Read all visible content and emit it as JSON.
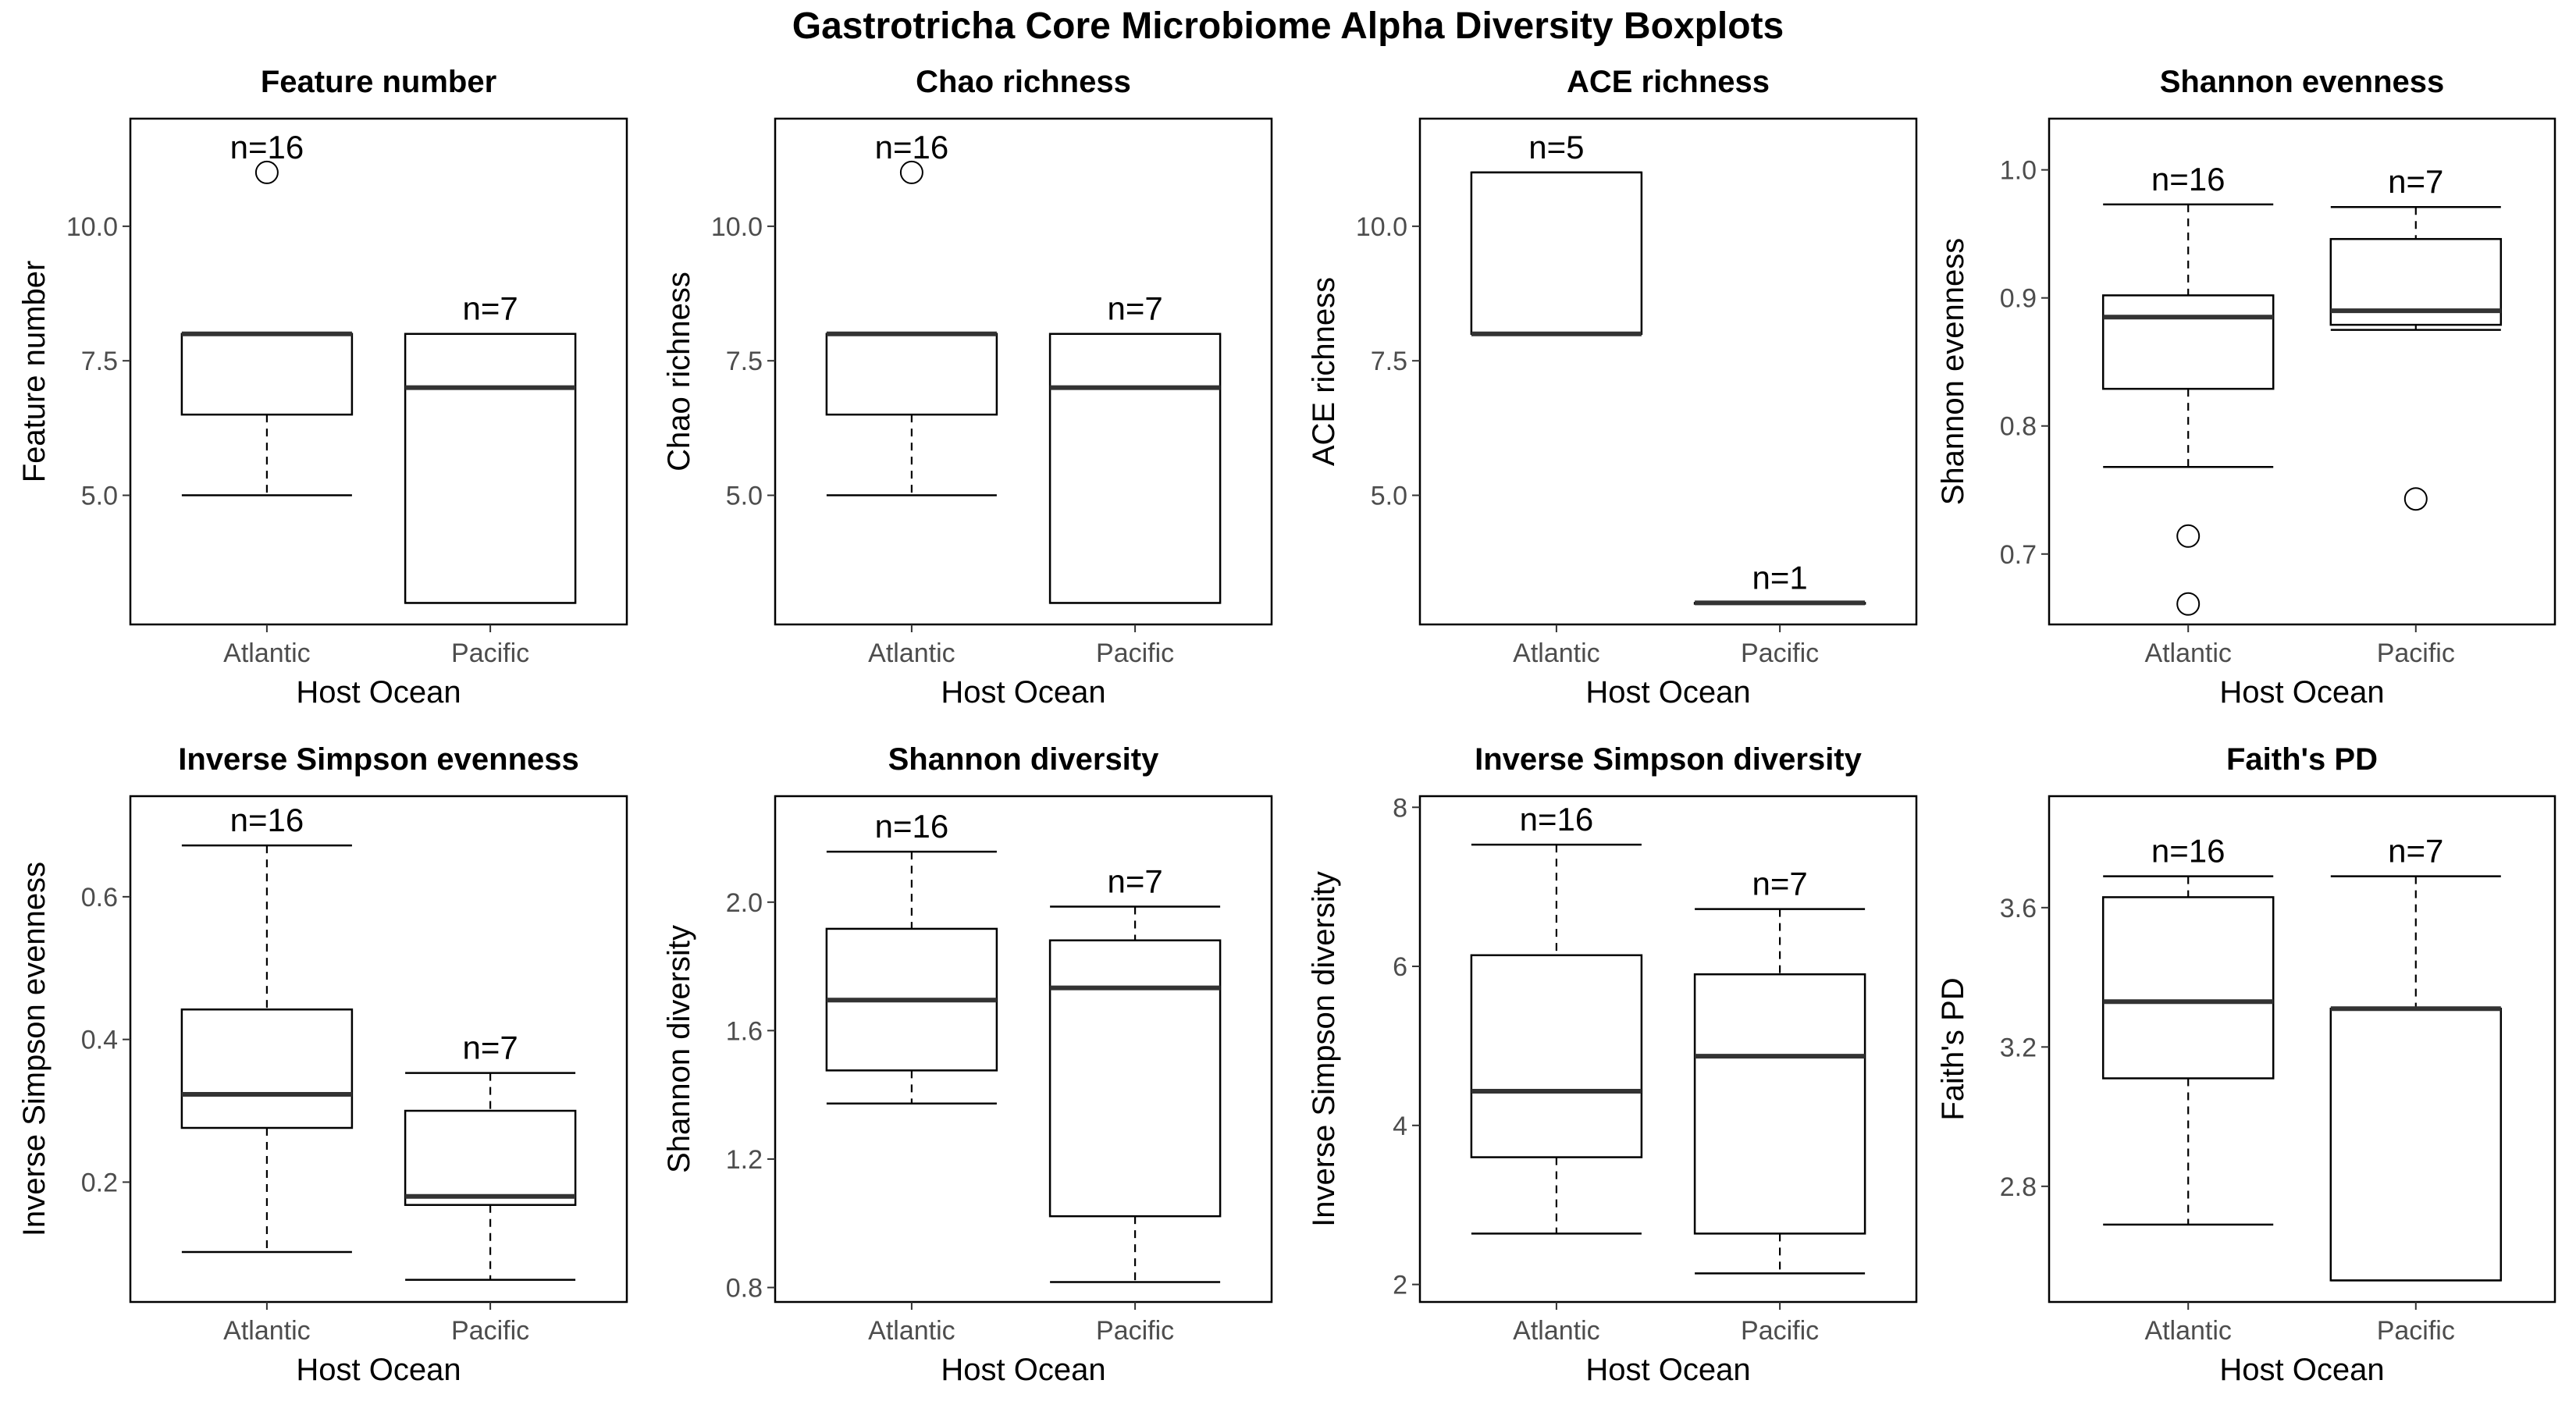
{
  "figure_title": "Gastrotricha Core Microbiome Alpha Diversity Boxplots",
  "chart_data": [
    {
      "type": "boxplot",
      "title": "Feature number",
      "xlabel": "Host Ocean",
      "ylabel": "Feature number",
      "categories": [
        "Atlantic",
        "Pacific"
      ],
      "ylim": [
        2.6,
        12.0
      ],
      "yticks": [
        5.0,
        7.5,
        10.0
      ],
      "ytick_labels": [
        "5.0",
        "7.5",
        "10.0"
      ],
      "boxes": [
        {
          "category": "Atlantic",
          "whisker_low": 5.0,
          "q1": 6.5,
          "median": 8.0,
          "q3": 8.0,
          "whisker_high": 8.0,
          "outliers": [
            11.0
          ],
          "n_label": "n=16"
        },
        {
          "category": "Pacific",
          "whisker_low": 3.0,
          "q1": 3.0,
          "median": 7.0,
          "q3": 8.0,
          "whisker_high": 8.0,
          "outliers": [],
          "n_label": "n=7"
        }
      ]
    },
    {
      "type": "boxplot",
      "title": "Chao richness",
      "xlabel": "Host Ocean",
      "ylabel": "Chao richness",
      "categories": [
        "Atlantic",
        "Pacific"
      ],
      "ylim": [
        2.6,
        12.0
      ],
      "yticks": [
        5.0,
        7.5,
        10.0
      ],
      "ytick_labels": [
        "5.0",
        "7.5",
        "10.0"
      ],
      "boxes": [
        {
          "category": "Atlantic",
          "whisker_low": 5.0,
          "q1": 6.5,
          "median": 8.0,
          "q3": 8.0,
          "whisker_high": 8.0,
          "outliers": [
            11.0
          ],
          "n_label": "n=16"
        },
        {
          "category": "Pacific",
          "whisker_low": 3.0,
          "q1": 3.0,
          "median": 7.0,
          "q3": 8.0,
          "whisker_high": 8.0,
          "outliers": [],
          "n_label": "n=7"
        }
      ]
    },
    {
      "type": "boxplot",
      "title": "ACE richness",
      "xlabel": "Host Ocean",
      "ylabel": "ACE richness",
      "categories": [
        "Atlantic",
        "Pacific"
      ],
      "ylim": [
        2.6,
        12.0
      ],
      "yticks": [
        5.0,
        7.5,
        10.0
      ],
      "ytick_labels": [
        "5.0",
        "7.5",
        "10.0"
      ],
      "boxes": [
        {
          "category": "Atlantic",
          "whisker_low": 8.0,
          "q1": 8.0,
          "median": 8.0,
          "q3": 11.0,
          "whisker_high": 11.0,
          "outliers": [],
          "n_label": "n=5"
        },
        {
          "category": "Pacific",
          "whisker_low": 3.0,
          "q1": 3.0,
          "median": 3.0,
          "q3": 3.0,
          "whisker_high": 3.0,
          "outliers": [],
          "n_label": "n=1"
        }
      ]
    },
    {
      "type": "boxplot",
      "title": "Shannon evenness",
      "xlabel": "Host Ocean",
      "ylabel": "Shannon evenness",
      "categories": [
        "Atlantic",
        "Pacific"
      ],
      "ylim": [
        0.645,
        1.04
      ],
      "yticks": [
        0.7,
        0.8,
        0.9,
        1.0
      ],
      "ytick_labels": [
        "0.7",
        "0.8",
        "0.9",
        "1.0"
      ],
      "boxes": [
        {
          "category": "Atlantic",
          "whisker_low": 0.768,
          "q1": 0.829,
          "median": 0.885,
          "q3": 0.902,
          "whisker_high": 0.973,
          "outliers": [
            0.714,
            0.661
          ],
          "n_label": "n=16"
        },
        {
          "category": "Pacific",
          "whisker_low": 0.875,
          "q1": 0.879,
          "median": 0.89,
          "q3": 0.946,
          "whisker_high": 0.971,
          "outliers": [
            0.743
          ],
          "n_label": "n=7"
        }
      ]
    },
    {
      "type": "boxplot",
      "title": "Inverse Simpson evenness",
      "xlabel": "Host Ocean",
      "ylabel": "Inverse Simpson evenness",
      "categories": [
        "Atlantic",
        "Pacific"
      ],
      "ylim": [
        0.032,
        0.741
      ],
      "yticks": [
        0.2,
        0.4,
        0.6
      ],
      "ytick_labels": [
        "0.2",
        "0.4",
        "0.6"
      ],
      "boxes": [
        {
          "category": "Atlantic",
          "whisker_low": 0.102,
          "q1": 0.276,
          "median": 0.323,
          "q3": 0.442,
          "whisker_high": 0.672,
          "outliers": [],
          "n_label": "n=16"
        },
        {
          "category": "Pacific",
          "whisker_low": 0.063,
          "q1": 0.168,
          "median": 0.18,
          "q3": 0.3,
          "whisker_high": 0.353,
          "outliers": [],
          "n_label": "n=7"
        }
      ]
    },
    {
      "type": "boxplot",
      "title": "Shannon diversity",
      "xlabel": "Host Ocean",
      "ylabel": "Shannon diversity",
      "categories": [
        "Atlantic",
        "Pacific"
      ],
      "ylim": [
        0.755,
        2.33
      ],
      "yticks": [
        0.8,
        1.2,
        1.6,
        2.0
      ],
      "ytick_labels": [
        "0.8",
        "1.2",
        "1.6",
        "2.0"
      ],
      "boxes": [
        {
          "category": "Atlantic",
          "whisker_low": 1.373,
          "q1": 1.476,
          "median": 1.695,
          "q3": 1.917,
          "whisker_high": 2.157,
          "outliers": [],
          "n_label": "n=16"
        },
        {
          "category": "Pacific",
          "whisker_low": 0.817,
          "q1": 1.022,
          "median": 1.733,
          "q3": 1.881,
          "whisker_high": 1.986,
          "outliers": [],
          "n_label": "n=7"
        }
      ]
    },
    {
      "type": "boxplot",
      "title": "Inverse Simpson diversity",
      "xlabel": "Host Ocean",
      "ylabel": "Inverse Simpson diversity",
      "categories": [
        "Atlantic",
        "Pacific"
      ],
      "ylim": [
        1.78,
        8.14
      ],
      "yticks": [
        2,
        4,
        6,
        8
      ],
      "ytick_labels": [
        "2",
        "4",
        "6",
        "8"
      ],
      "boxes": [
        {
          "category": "Atlantic",
          "whisker_low": 2.64,
          "q1": 3.6,
          "median": 4.43,
          "q3": 6.14,
          "whisker_high": 7.53,
          "outliers": [],
          "n_label": "n=16"
        },
        {
          "category": "Pacific",
          "whisker_low": 2.14,
          "q1": 2.64,
          "median": 4.87,
          "q3": 5.9,
          "whisker_high": 6.72,
          "outliers": [],
          "n_label": "n=7"
        }
      ]
    },
    {
      "type": "boxplot",
      "title": "Faith's PD",
      "xlabel": "Host Ocean",
      "ylabel": "Faith's PD",
      "categories": [
        "Atlantic",
        "Pacific"
      ],
      "ylim": [
        2.468,
        3.92
      ],
      "yticks": [
        2.8,
        3.2,
        3.6
      ],
      "ytick_labels": [
        "2.8",
        "3.2",
        "3.6"
      ],
      "boxes": [
        {
          "category": "Atlantic",
          "whisker_low": 2.69,
          "q1": 3.11,
          "median": 3.33,
          "q3": 3.63,
          "whisker_high": 3.69,
          "outliers": [],
          "n_label": "n=16"
        },
        {
          "category": "Pacific",
          "whisker_low": 2.53,
          "q1": 2.53,
          "median": 3.31,
          "q3": 3.31,
          "whisker_high": 3.69,
          "outliers": [],
          "n_label": "n=7"
        }
      ]
    }
  ]
}
